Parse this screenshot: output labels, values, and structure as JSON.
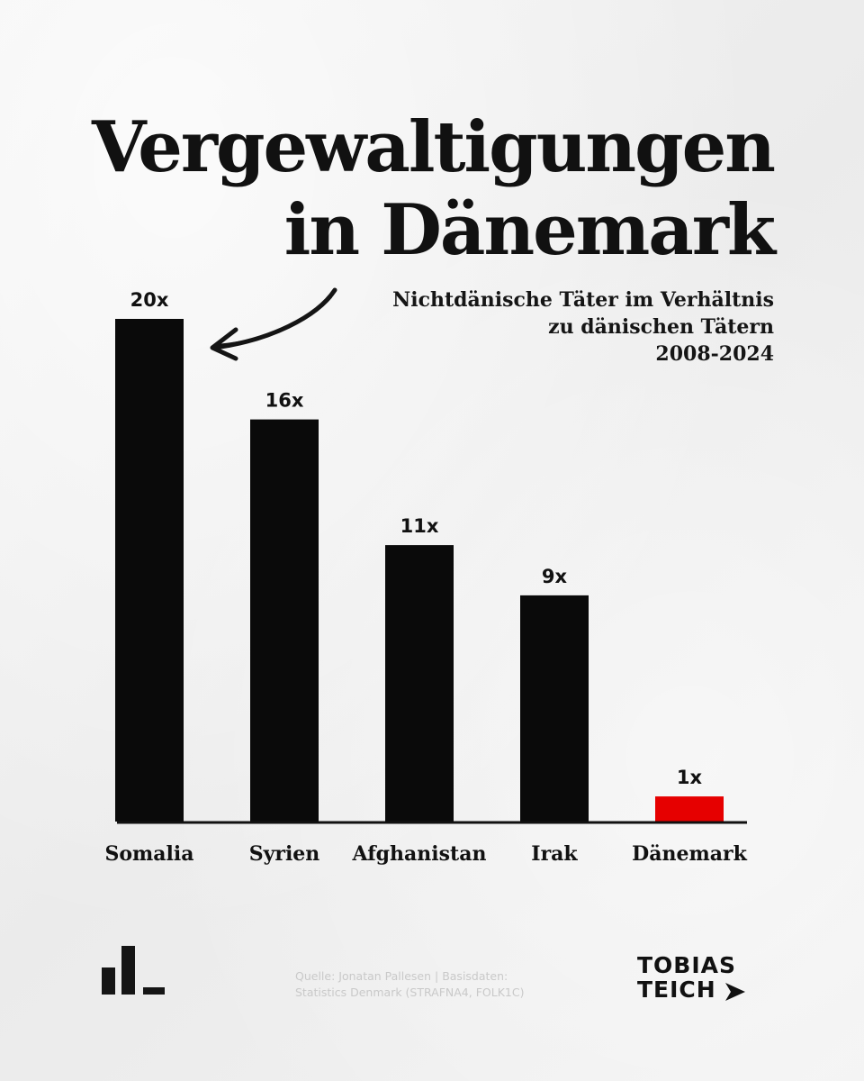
{
  "header": {
    "title_line1": "Vergewaltigungen",
    "title_line2": "in Dänemark",
    "subtitle_line1": "Nichtdänische Täter im Verhältnis",
    "subtitle_line2": "zu dänischen Tätern",
    "subtitle_line3": "2008-2024"
  },
  "chart_data": {
    "type": "bar",
    "title": "Vergewaltigungen in Dänemark",
    "subtitle": "Nichtdänische Täter im Verhältnis zu dänischen Tätern 2008-2024",
    "categories": [
      "Somalia",
      "Syrien",
      "Afghanistan",
      "Irak",
      "Dänemark"
    ],
    "values": [
      20,
      16,
      11,
      9,
      1
    ],
    "value_labels": [
      "20x",
      "16x",
      "11x",
      "9x",
      "1x"
    ],
    "colors": [
      "#0a0a0a",
      "#0a0a0a",
      "#0a0a0a",
      "#0a0a0a",
      "#e60000"
    ],
    "ylim": [
      0,
      20
    ],
    "grid": false,
    "annotations": [
      {
        "type": "arrow",
        "target": "Somalia"
      }
    ]
  },
  "footer": {
    "source_line1": "Quelle: Jonatan Pallesen | Basisdaten:",
    "source_line2": "Statistics Denmark (STRAFNA4, FOLK1C)",
    "brand_line1": "TOBIAS",
    "brand_line2": "TEICH",
    "logo_icon": "bar-chart-logo-icon",
    "brand_arrow_icon": "arrow-right-icon"
  }
}
